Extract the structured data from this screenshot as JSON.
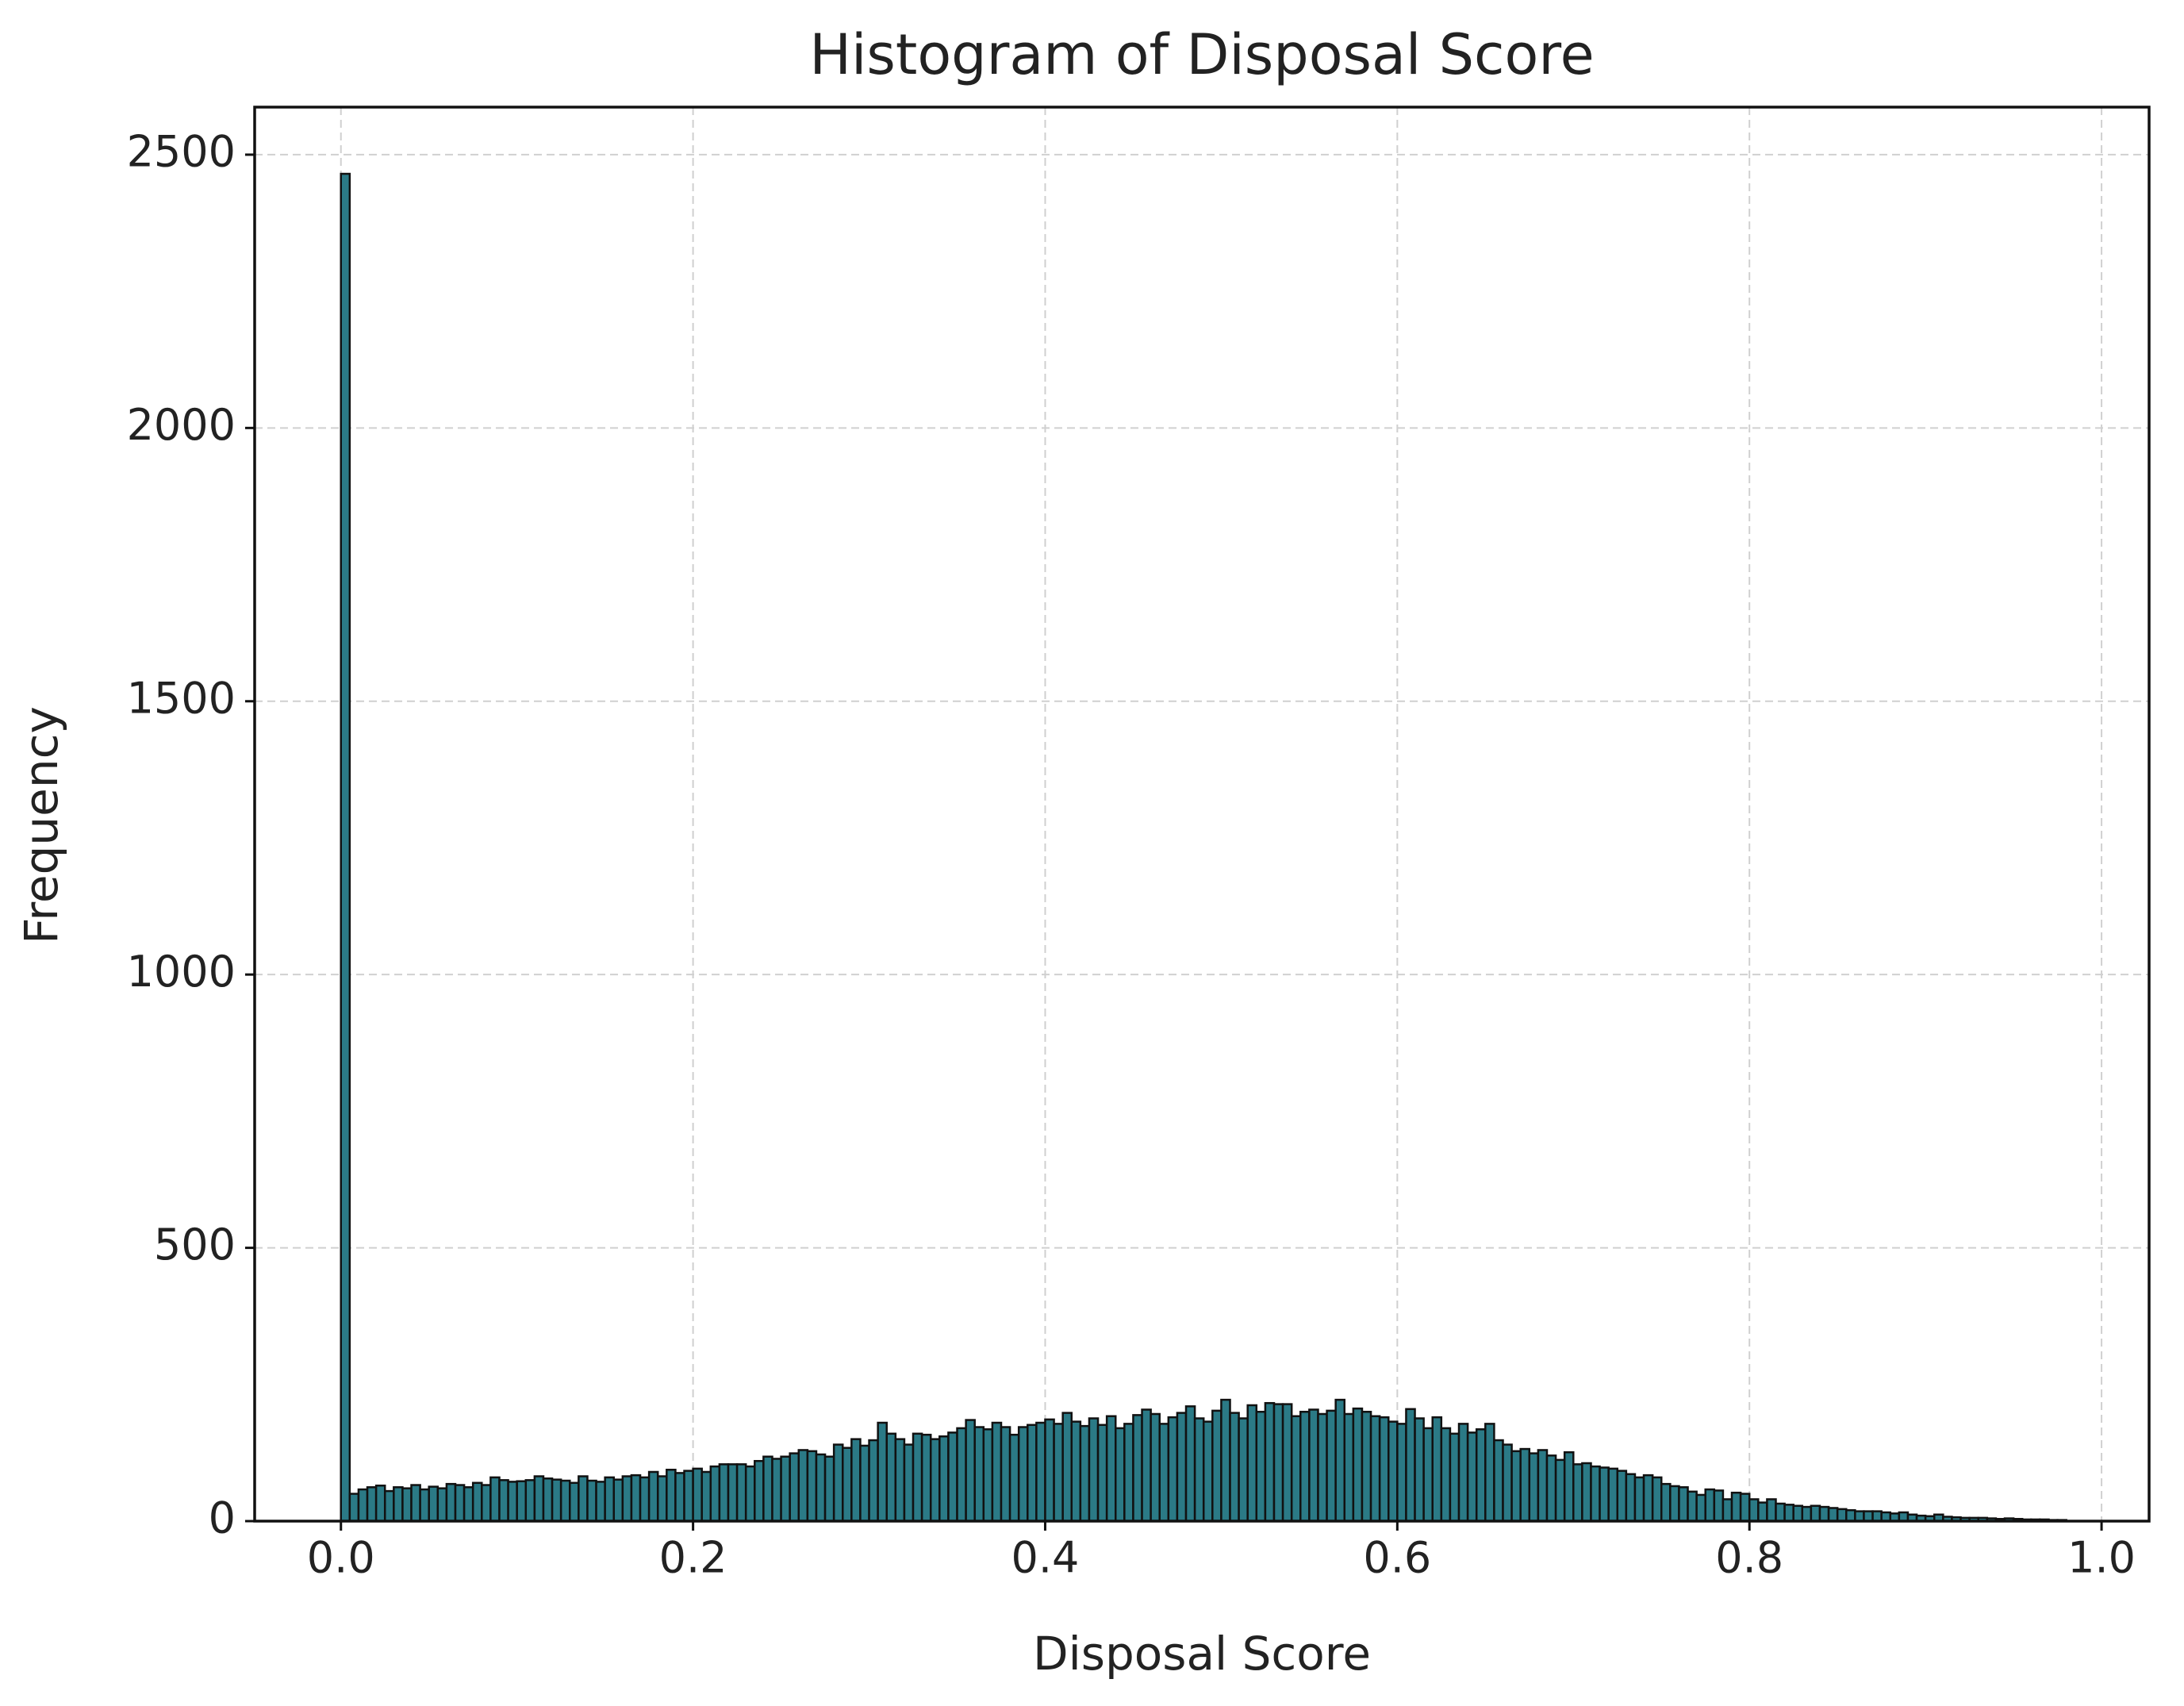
{
  "chart_data": {
    "type": "histogram",
    "title": "Histogram of Disposal Score",
    "xlabel": "Disposal Score",
    "ylabel": "Frequency",
    "bins": [
      0,
      0.005,
      0.01,
      0.015,
      0.02,
      0.025,
      0.03,
      0.035,
      0.04,
      0.045,
      0.05,
      0.055,
      0.06,
      0.065,
      0.07,
      0.075,
      0.08,
      0.085,
      0.09,
      0.095,
      0.1,
      0.105,
      0.11,
      0.115,
      0.12,
      0.125,
      0.13,
      0.135,
      0.14,
      0.145,
      0.15,
      0.155,
      0.16,
      0.165,
      0.17,
      0.175,
      0.18,
      0.185,
      0.19,
      0.195,
      0.2,
      0.205,
      0.21,
      0.215,
      0.22,
      0.225,
      0.23,
      0.235,
      0.24,
      0.245,
      0.25,
      0.255,
      0.26,
      0.265,
      0.27,
      0.275,
      0.28,
      0.285,
      0.29,
      0.295,
      0.3,
      0.305,
      0.31,
      0.315,
      0.32,
      0.325,
      0.33,
      0.335,
      0.34,
      0.345,
      0.35,
      0.355,
      0.36,
      0.365,
      0.37,
      0.375,
      0.38,
      0.385,
      0.39,
      0.395,
      0.4,
      0.405,
      0.41,
      0.415,
      0.42,
      0.425,
      0.43,
      0.435,
      0.44,
      0.445,
      0.45,
      0.455,
      0.46,
      0.465,
      0.47,
      0.475,
      0.48,
      0.485,
      0.49,
      0.495,
      0.5,
      0.505,
      0.51,
      0.515,
      0.52,
      0.525,
      0.53,
      0.535,
      0.54,
      0.545,
      0.55,
      0.555,
      0.56,
      0.565,
      0.57,
      0.575,
      0.58,
      0.585,
      0.59,
      0.595,
      0.6,
      0.605,
      0.61,
      0.615,
      0.62,
      0.625,
      0.63,
      0.635,
      0.64,
      0.645,
      0.65,
      0.655,
      0.66,
      0.665,
      0.67,
      0.675,
      0.68,
      0.685,
      0.69,
      0.695,
      0.7,
      0.705,
      0.71,
      0.715,
      0.72,
      0.725,
      0.73,
      0.735,
      0.74,
      0.745,
      0.75,
      0.755,
      0.76,
      0.765,
      0.77,
      0.775,
      0.78,
      0.785,
      0.79,
      0.795,
      0.8,
      0.805,
      0.81,
      0.815,
      0.82,
      0.825,
      0.83,
      0.835,
      0.84,
      0.845,
      0.85,
      0.855,
      0.86,
      0.865,
      0.87,
      0.875,
      0.88,
      0.885,
      0.89,
      0.895,
      0.9,
      0.905,
      0.91,
      0.915,
      0.92,
      0.925,
      0.93,
      0.935,
      0.94,
      0.945,
      0.95,
      0.955,
      0.96,
      0.965,
      0.97,
      0.975,
      0.98
    ],
    "values": [
      2465,
      50,
      58,
      62,
      65,
      55,
      62,
      60,
      66,
      58,
      63,
      60,
      68,
      66,
      62,
      70,
      66,
      80,
      75,
      72,
      73,
      75,
      82,
      78,
      76,
      74,
      70,
      82,
      74,
      72,
      80,
      76,
      82,
      84,
      80,
      90,
      82,
      94,
      88,
      92,
      96,
      90,
      100,
      104,
      104,
      104,
      100,
      110,
      118,
      114,
      118,
      124,
      130,
      128,
      122,
      118,
      140,
      134,
      150,
      138,
      148,
      180,
      160,
      150,
      140,
      160,
      158,
      150,
      155,
      162,
      170,
      185,
      172,
      168,
      180,
      172,
      158,
      172,
      176,
      180,
      186,
      178,
      198,
      182,
      174,
      188,
      176,
      192,
      170,
      178,
      194,
      204,
      196,
      178,
      190,
      198,
      210,
      188,
      182,
      202,
      222,
      198,
      188,
      212,
      200,
      216,
      214,
      214,
      192,
      200,
      204,
      196,
      202,
      222,
      196,
      206,
      200,
      192,
      190,
      182,
      178,
      205,
      188,
      170,
      190,
      170,
      160,
      178,
      162,
      168,
      178,
      148,
      140,
      128,
      132,
      124,
      130,
      120,
      112,
      126,
      104,
      106,
      100,
      98,
      96,
      92,
      86,
      80,
      84,
      80,
      68,
      64,
      62,
      54,
      48,
      58,
      56,
      40,
      52,
      50,
      40,
      34,
      40,
      32,
      30,
      28,
      26,
      28,
      26,
      24,
      22,
      20,
      18,
      18,
      18,
      16,
      14,
      16,
      12,
      10,
      9,
      12,
      8,
      7,
      6,
      6,
      6,
      5,
      4,
      5,
      4,
      3,
      3,
      3,
      2,
      2
    ],
    "color": "#2b7a86",
    "edgecolor": "#111111",
    "xlim": [
      -0.049,
      1.027
    ],
    "ylim": [
      0,
      2587
    ],
    "xticks": [
      {
        "value": 0,
        "label": "0.0"
      },
      0.2,
      0.4,
      0.6,
      0.8,
      {
        "value": 1,
        "label": "1.0"
      }
    ],
    "yticks": [
      0,
      500,
      1000,
      1500,
      2000,
      2500
    ],
    "grid": true
  }
}
